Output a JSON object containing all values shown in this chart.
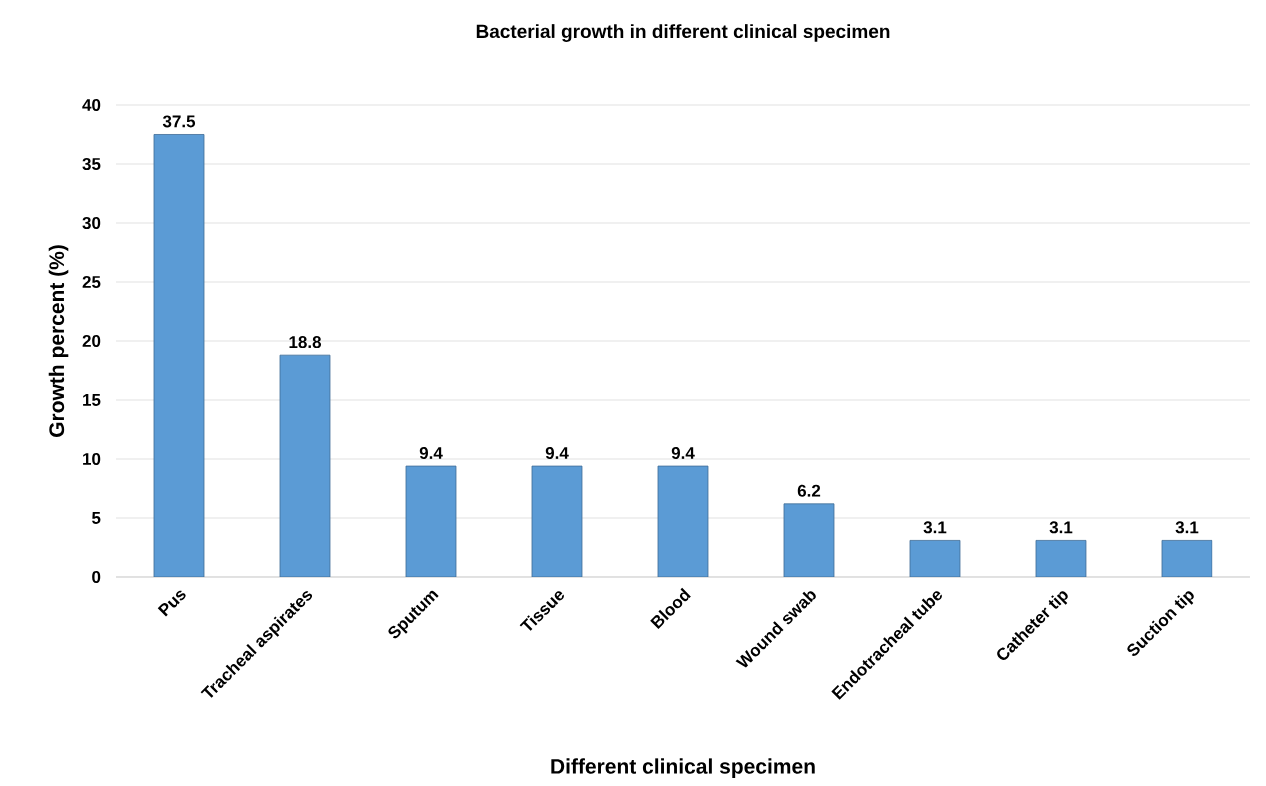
{
  "chart_data": {
    "type": "bar",
    "title": "Bacterial growth in different clinical specimen",
    "xlabel": "Different clinical specimen",
    "ylabel": "Growth percent (%)",
    "categories": [
      "Pus",
      "Tracheal aspirates",
      "Sputum",
      "Tissue",
      "Blood",
      "Wound swab",
      "Endotracheal tube",
      "Catheter tip",
      "Suction tip"
    ],
    "values": [
      37.5,
      18.8,
      9.4,
      9.4,
      9.4,
      6.2,
      3.1,
      3.1,
      3.1
    ],
    "color": "#5b9bd5",
    "data_labels": true,
    "grid": "y",
    "ylim": [
      0,
      40
    ],
    "yticks": [
      0,
      5,
      10,
      15,
      20,
      25,
      30,
      35,
      40
    ]
  }
}
